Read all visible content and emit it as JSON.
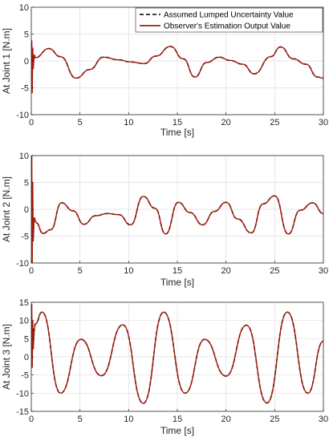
{
  "legend": {
    "assumed_label": "Assumed Lumped Uncertainty Value",
    "observer_label": "Observer's Estimation Output Value",
    "assumed_color": "#000000",
    "observer_color": "#a21b0c"
  },
  "chart_data": [
    {
      "type": "line",
      "title": "",
      "xlabel": "Time [s]",
      "ylabel": "At Joint 1 [N.m]",
      "xlim": [
        0,
        30
      ],
      "ylim": [
        -10,
        10
      ],
      "xticks": [
        "0",
        "5",
        "10",
        "15",
        "20",
        "25",
        "30"
      ],
      "yticks": [
        "10",
        "5",
        "0",
        "-5",
        "-10"
      ],
      "grid": true,
      "legend_position": "top-right",
      "series": [
        {
          "name": "Assumed Lumped Uncertainty Value",
          "style": "dashed",
          "x": [
            0,
            0.4,
            1.8,
            3,
            4.6,
            6,
            7.4,
            9,
            10.2,
            11.6,
            12.8,
            14.3,
            15.6,
            16.8,
            18,
            19.3,
            20.4,
            21.7,
            22.9,
            24.6,
            25.6,
            26.9,
            28.2,
            29.4,
            30
          ],
          "y": [
            0.6,
            0.6,
            2.3,
            0.8,
            -3.2,
            -1.6,
            0.7,
            0.2,
            -0.2,
            -0.5,
            0.9,
            2.7,
            0.4,
            -3,
            -0.3,
            0.7,
            0.1,
            -0.6,
            -2.4,
            0.8,
            2.6,
            0.4,
            -0.6,
            -3,
            -3.2
          ]
        },
        {
          "name": "Observer's Estimation Output Value",
          "style": "solid",
          "x": [
            0,
            0.05,
            0.1,
            0.15,
            0.2,
            0.3,
            0.4,
            1.8,
            3,
            4.6,
            6,
            7.4,
            9,
            10.2,
            11.6,
            12.8,
            14.3,
            15.6,
            16.8,
            18,
            19.3,
            20.4,
            21.7,
            22.9,
            24.6,
            25.6,
            26.9,
            28.2,
            29.4,
            30
          ],
          "y": [
            0,
            3.8,
            -6,
            2.5,
            -1.5,
            1.2,
            0.6,
            2.3,
            0.8,
            -3.2,
            -1.6,
            0.7,
            0.2,
            -0.2,
            -0.5,
            0.9,
            2.7,
            0.4,
            -3,
            -0.3,
            0.7,
            0.1,
            -0.6,
            -2.4,
            0.8,
            2.6,
            0.4,
            -0.6,
            -3,
            -3.2
          ]
        }
      ]
    },
    {
      "type": "line",
      "title": "",
      "xlabel": "Time [s]",
      "ylabel": "At Joint 2 [N.m]",
      "xlim": [
        0,
        30
      ],
      "ylim": [
        -10,
        10
      ],
      "xticks": [
        "0",
        "5",
        "10",
        "15",
        "20",
        "25",
        "30"
      ],
      "yticks": [
        "10",
        "5",
        "0",
        "-5",
        "-10"
      ],
      "grid": true,
      "series": [
        {
          "name": "Assumed Lumped Uncertainty Value",
          "style": "dashed",
          "x": [
            0,
            0.5,
            1.2,
            2,
            3.1,
            4.3,
            5.4,
            6.6,
            7.8,
            9,
            10.2,
            11.5,
            12.7,
            13.8,
            15.1,
            16.3,
            17.6,
            18.8,
            20,
            21.2,
            22.6,
            23.8,
            25,
            26.4,
            27.6,
            28.9,
            30
          ],
          "y": [
            -2,
            -2.5,
            -4.5,
            -3.8,
            1.2,
            -0.3,
            -2.8,
            -1.2,
            -0.8,
            -1,
            -2.9,
            2.4,
            0.2,
            -4.6,
            1.3,
            -0.6,
            -2.9,
            -0.4,
            1.3,
            -1.8,
            -4.4,
            1,
            2.5,
            -4.6,
            -0.2,
            1.2,
            -0.8
          ]
        },
        {
          "name": "Observer's Estimation Output Value",
          "style": "solid",
          "x": [
            0,
            0.05,
            0.1,
            0.15,
            0.2,
            0.3,
            0.5,
            1.2,
            2,
            3.1,
            4.3,
            5.4,
            6.6,
            7.8,
            9,
            10.2,
            11.5,
            12.7,
            13.8,
            15.1,
            16.3,
            17.6,
            18.8,
            20,
            21.2,
            22.6,
            23.8,
            25,
            26.4,
            27.6,
            28.9,
            30
          ],
          "y": [
            0,
            10,
            -10,
            5,
            -6,
            -1.5,
            -2.5,
            -4.5,
            -3.8,
            1.2,
            -0.3,
            -2.8,
            -1.2,
            -0.8,
            -1,
            -2.9,
            2.4,
            0.2,
            -4.6,
            1.3,
            -0.6,
            -2.9,
            -0.4,
            1.3,
            -1.8,
            -4.4,
            1,
            2.5,
            -4.6,
            -0.2,
            1.2,
            -0.8
          ]
        }
      ]
    },
    {
      "type": "line",
      "title": "",
      "xlabel": "Time [s]",
      "ylabel": "At Joint 3 [N.m]",
      "xlim": [
        0,
        30
      ],
      "ylim": [
        -15,
        15
      ],
      "xticks": [
        "0",
        "5",
        "10",
        "15",
        "20",
        "25",
        "30"
      ],
      "yticks": [
        "15",
        "10",
        "5",
        "0",
        "-5",
        "-10",
        "-15"
      ],
      "grid": true,
      "series": [
        {
          "name": "Assumed Lumped Uncertainty Value",
          "style": "dashed",
          "x": [
            0,
            0.4,
            1.1,
            3,
            5.1,
            7.2,
            9.4,
            11.5,
            13.6,
            15.8,
            17.8,
            20,
            22.1,
            24.2,
            26.3,
            28.4,
            30
          ],
          "y": [
            5,
            9,
            12.3,
            -10,
            4.8,
            -5.2,
            8.8,
            -12.8,
            12.3,
            -10,
            4.8,
            -5.3,
            8.7,
            -12.7,
            12.3,
            -10,
            4.3
          ]
        },
        {
          "name": "Observer's Estimation Output Value",
          "style": "solid",
          "x": [
            0,
            0.05,
            0.1,
            0.15,
            0.2,
            0.3,
            0.4,
            1.1,
            3,
            5.1,
            7.2,
            9.4,
            11.5,
            13.6,
            15.8,
            17.8,
            20,
            22.1,
            24.2,
            26.3,
            28.4,
            30
          ],
          "y": [
            0,
            14.5,
            -3,
            10,
            2,
            7,
            9,
            12.3,
            -10,
            4.8,
            -5.2,
            8.8,
            -12.8,
            12.3,
            -10,
            4.8,
            -5.3,
            8.7,
            -12.7,
            12.3,
            -10,
            4.3
          ]
        }
      ]
    }
  ]
}
